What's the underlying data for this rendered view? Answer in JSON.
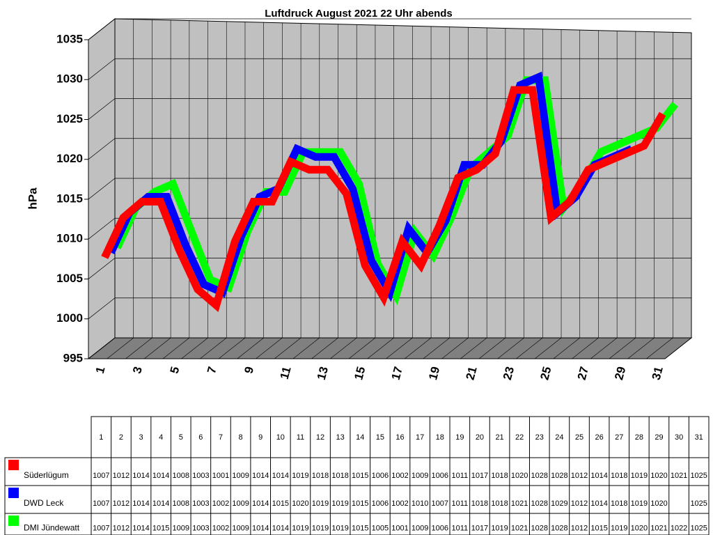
{
  "chart_data": {
    "type": "line",
    "title": "Luftdruck August 2021 22 Uhr abends",
    "y_label": "hPa",
    "categories": [
      "1",
      "2",
      "3",
      "4",
      "5",
      "6",
      "7",
      "8",
      "9",
      "10",
      "11",
      "12",
      "13",
      "14",
      "15",
      "16",
      "17",
      "18",
      "19",
      "20",
      "21",
      "22",
      "23",
      "24",
      "25",
      "26",
      "27",
      "28",
      "29",
      "30",
      "31"
    ],
    "series": [
      {
        "name": "Süderlügum",
        "color": "#ff0000",
        "values": [
          1007,
          1012,
          1014,
          1014,
          1008,
          1003,
          1001,
          1009,
          1014,
          1014,
          1019,
          1018,
          1018,
          1015,
          1006,
          1002,
          1009,
          1006,
          1011,
          1017,
          1018,
          1020,
          1028,
          1028,
          1012,
          1014,
          1018,
          1019,
          1020,
          1021,
          1025
        ]
      },
      {
        "name": "DWD Leck",
        "color": "#0000ff",
        "values": [
          1007,
          1012,
          1014,
          1014,
          1008,
          1003,
          1002,
          1009,
          1014,
          1015,
          1020,
          1019,
          1019,
          1015,
          1006,
          1002,
          1010,
          1007,
          1011,
          1018,
          1018,
          1021,
          1028,
          1029,
          1012,
          1014,
          1018,
          1019,
          1020,
          null,
          1025
        ]
      },
      {
        "name": "DMI Jündewatt",
        "color": "#00ff00",
        "values": [
          1007,
          1012,
          1014,
          1015,
          1009,
          1003,
          1002,
          1009,
          1014,
          1014,
          1019,
          1019,
          1019,
          1015,
          1005,
          1001,
          1009,
          1006,
          1011,
          1017,
          1019,
          1021,
          1028,
          1028,
          1012,
          1015,
          1019,
          1020,
          1021,
          1022,
          1025
        ]
      }
    ],
    "ylim": [
      995,
      1035
    ],
    "yticks": [
      995,
      1000,
      1005,
      1010,
      1015,
      1020,
      1025,
      1030,
      1035
    ],
    "grid": true
  }
}
